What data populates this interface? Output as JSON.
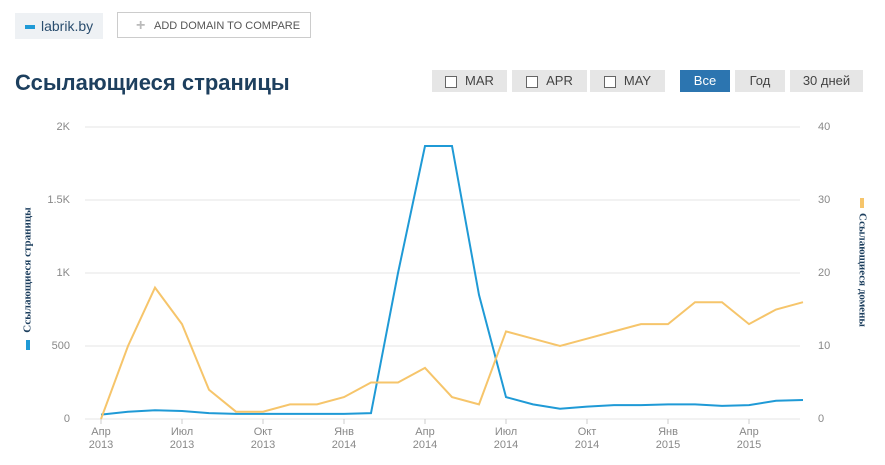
{
  "header": {
    "domain": "labrik.by",
    "add_button": "ADD DOMAIN TO COMPARE",
    "checkboxes": [
      "MAR",
      "APR",
      "MAY"
    ],
    "periods": [
      "Все",
      "Год",
      "30 дней"
    ],
    "active_period": "Все"
  },
  "chart_data": {
    "type": "line",
    "title": "Ссылающиеся страницы",
    "x": [
      "2013-04",
      "2013-05",
      "2013-06",
      "2013-07",
      "2013-08",
      "2013-09",
      "2013-10",
      "2013-11",
      "2013-12",
      "2014-01",
      "2014-02",
      "2014-03",
      "2014-04",
      "2014-05",
      "2014-06",
      "2014-07",
      "2014-08",
      "2014-09",
      "2014-10",
      "2014-11",
      "2014-12",
      "2015-01",
      "2015-02",
      "2015-03",
      "2015-04",
      "2015-05",
      "2015-06"
    ],
    "xlim": [
      "2013-03",
      "2015-07"
    ],
    "xticks": [
      {
        "value": "2013-04",
        "label": "Апр 2013"
      },
      {
        "value": "2013-07",
        "label": "Июл 2013"
      },
      {
        "value": "2013-10",
        "label": "Окт 2013"
      },
      {
        "value": "2014-01",
        "label": "Янв 2014"
      },
      {
        "value": "2014-04",
        "label": "Апр 2014"
      },
      {
        "value": "2014-07",
        "label": "Июл 2014"
      },
      {
        "value": "2014-10",
        "label": "Окт 2014"
      },
      {
        "value": "2015-01",
        "label": "Янв 2015"
      },
      {
        "value": "2015-04",
        "label": "Апр 2015"
      }
    ],
    "ylim": [
      0,
      2000
    ],
    "yticks": [
      0,
      500,
      {
        "value": 1000,
        "label": "1K"
      },
      {
        "value": 1500,
        "label": "1.5K"
      },
      {
        "value": 2000,
        "label": "2K"
      }
    ],
    "y2lim": [
      0,
      40
    ],
    "y2ticks": [
      0,
      10,
      20,
      30,
      40
    ],
    "grid": true,
    "series": [
      {
        "name": "Ссылающиеся страницы",
        "color": "#1f9ad6",
        "values": [
          30,
          50,
          60,
          55,
          40,
          35,
          35,
          35,
          35,
          35,
          40,
          1000,
          1870,
          1870,
          850,
          150,
          100,
          70,
          85,
          95,
          95,
          100,
          100,
          90,
          95,
          125,
          130
        ]
      },
      {
        "name": "Ссылающиеся домены",
        "color": "#f6c56b",
        "axis": "y2",
        "values": [
          0,
          10,
          18,
          13,
          4,
          1,
          1,
          2,
          2,
          3,
          5,
          5,
          7,
          3,
          2,
          12,
          11,
          10,
          11,
          12,
          13,
          13,
          16,
          16,
          13,
          15,
          16
        ]
      }
    ]
  }
}
